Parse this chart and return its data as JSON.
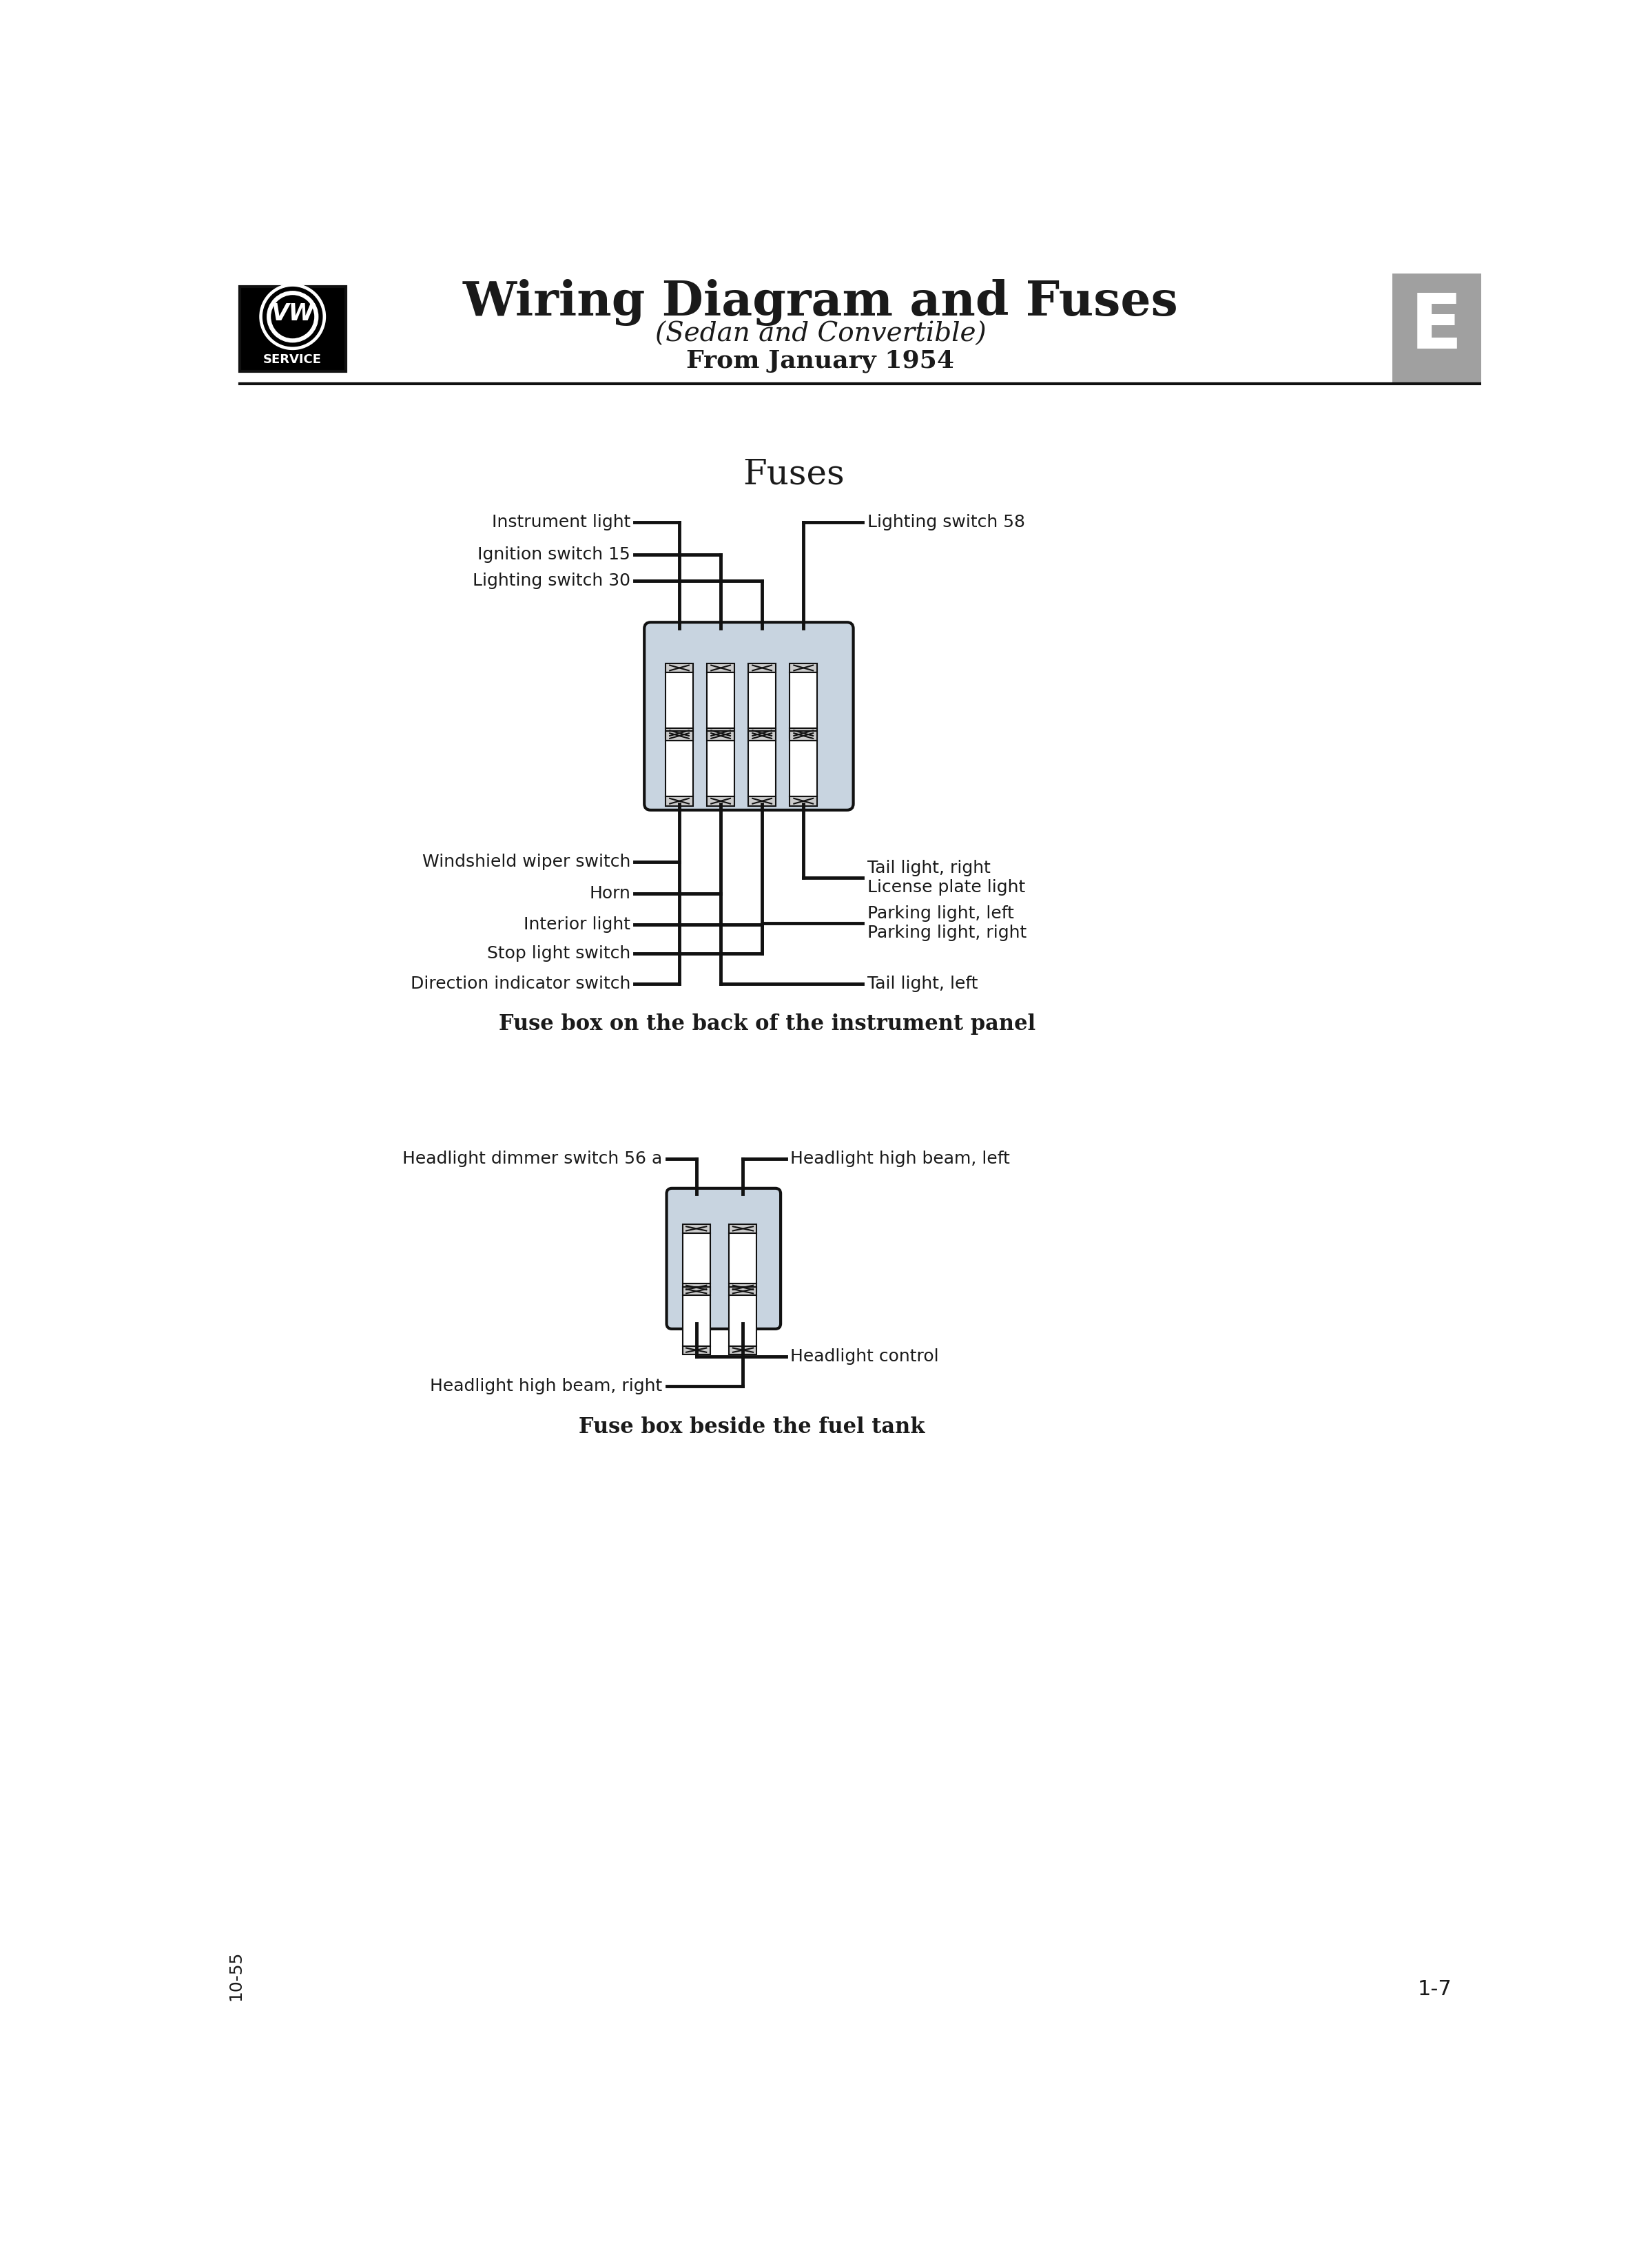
{
  "title_main": "Wiring Diagram and Fuses",
  "title_sub1": "(Sedan and Convertible)",
  "title_sub2": "From January 1954",
  "section1_title": "Fuses",
  "section1_caption": "Fuse box on the back of the instrument panel",
  "section2_caption": "Fuse box beside the fuel tank",
  "left_labels_top": [
    "Instrument light",
    "Ignition switch 15",
    "Lighting switch 30"
  ],
  "right_labels_top": [
    "Lighting switch 58"
  ],
  "left_labels_bottom": [
    "Windshield wiper switch",
    "Horn",
    "Interior light",
    "Stop light switch",
    "Direction indicator switch"
  ],
  "right_labels_bottom": [
    "Tail light, right\nLicense plate light",
    "Parking light, left\nParking light, right",
    "Tail light, left"
  ],
  "left_labels2": [
    "Headlight dimmer switch 56 a"
  ],
  "right_labels2": [
    "Headlight control",
    "Headlight high beam, left"
  ],
  "left_labels2_bot": [
    "Headlight high beam, right"
  ],
  "bg_color": "#ffffff",
  "text_color": "#1a1a1a",
  "line_color": "#111111",
  "box_bg": "#c8d4e0",
  "box_border": "#111111",
  "tab_color": "#a0a0a0",
  "tab_letter": "E",
  "footer_left": "10-55",
  "footer_right": "1-7",
  "lw": 3.5
}
